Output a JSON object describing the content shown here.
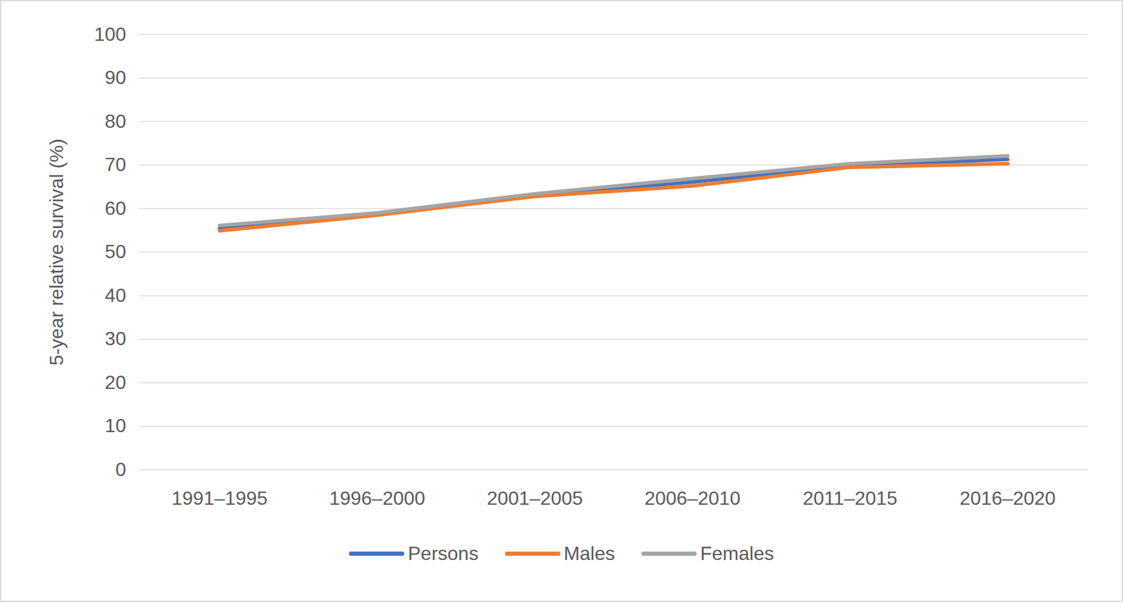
{
  "chart_data": {
    "type": "line",
    "categories": [
      "1991–1995",
      "1996–2000",
      "2001–2005",
      "2006–2010",
      "2011–2015",
      "2016–2020"
    ],
    "series": [
      {
        "name": "Persons",
        "color": "#4472c4",
        "values": [
          55.5,
          58.8,
          63.1,
          66.1,
          69.9,
          71.3
        ]
      },
      {
        "name": "Males",
        "color": "#ed7d31",
        "values": [
          54.9,
          58.5,
          62.8,
          65.2,
          69.5,
          70.3
        ]
      },
      {
        "name": "Females",
        "color": "#a5a5a5",
        "values": [
          56.1,
          59.0,
          63.4,
          66.9,
          70.3,
          72.1
        ]
      }
    ],
    "ylabel": "5-year relative survival (%)",
    "ylim": [
      0,
      100
    ],
    "yticks": [
      0,
      10,
      20,
      30,
      40,
      50,
      60,
      70,
      80,
      90,
      100
    ],
    "grid": true,
    "legend": "bottom"
  }
}
